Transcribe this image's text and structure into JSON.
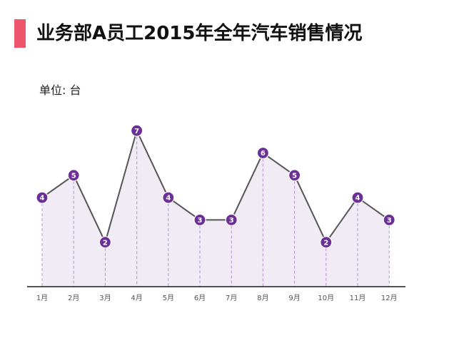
{
  "header": {
    "title": "业务部A员工2015年全年汽车销售情况",
    "unit_label": "单位: 台"
  },
  "colors": {
    "accent": "#ee5670",
    "line": "#555555",
    "area": "#f1ebf5",
    "marker": "#6b2f97",
    "dropline": "#b48fd2",
    "axis": "#1a1a1a"
  },
  "chart_data": {
    "type": "area",
    "title": "业务部A员工2015年全年汽车销售情况",
    "ylabel": "单位: 台",
    "xlabel": "",
    "categories": [
      "1月",
      "2月",
      "3月",
      "4月",
      "5月",
      "6月",
      "7月",
      "8月",
      "9月",
      "10月",
      "11月",
      "12月"
    ],
    "values": [
      4,
      5,
      2,
      7,
      4,
      3,
      3,
      6,
      5,
      2,
      4,
      3
    ],
    "ylim": [
      0,
      7
    ],
    "grid": false,
    "data_labels": true,
    "legend": "none"
  }
}
